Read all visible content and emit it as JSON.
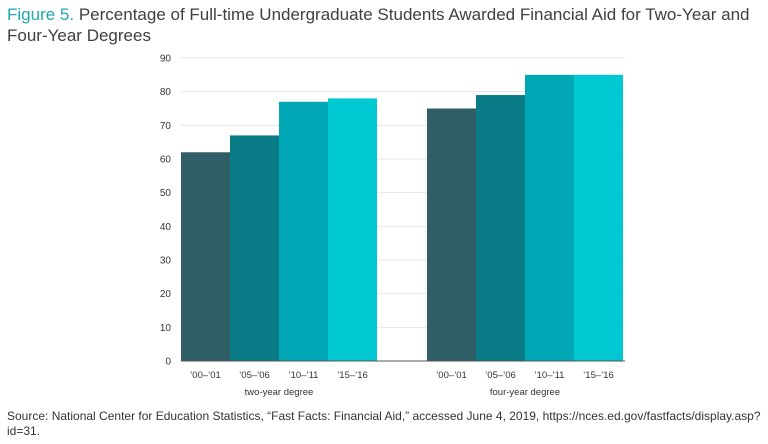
{
  "title": {
    "figure_label": "Figure 5.",
    "text": "Percentage of Full-time Undergraduate Students Awarded Financial Aid for Two-Year and Four-Year Degrees"
  },
  "source": "Source: National Center for Education Statistics, “Fast Facts: Financial Aid,” accessed June 4, 2019, https://nces.ed.gov/fastfacts/display.asp?id=31.",
  "colors": {
    "period_colors": [
      "#2f5e66",
      "#087b87",
      "#00a8b6",
      "#00c8d3"
    ],
    "grid": "#e5e5e5",
    "title_accent": "#1fa7b4"
  },
  "chart_data": {
    "type": "bar",
    "groups": [
      {
        "label": "two-year degree",
        "categories": [
          "’00–’01",
          "’05–’06",
          "’10–’11",
          "’15–’16"
        ],
        "values": [
          62,
          67,
          77,
          78
        ]
      },
      {
        "label": "four-year degree",
        "categories": [
          "’00–’01",
          "’05–’06",
          "’10–’11",
          "’15–’16"
        ],
        "values": [
          75,
          79,
          85,
          85
        ]
      }
    ],
    "ylim": [
      0,
      90
    ],
    "yticks": [
      0,
      10,
      20,
      30,
      40,
      50,
      60,
      70,
      80,
      90
    ],
    "grid": true,
    "legend": "none"
  }
}
